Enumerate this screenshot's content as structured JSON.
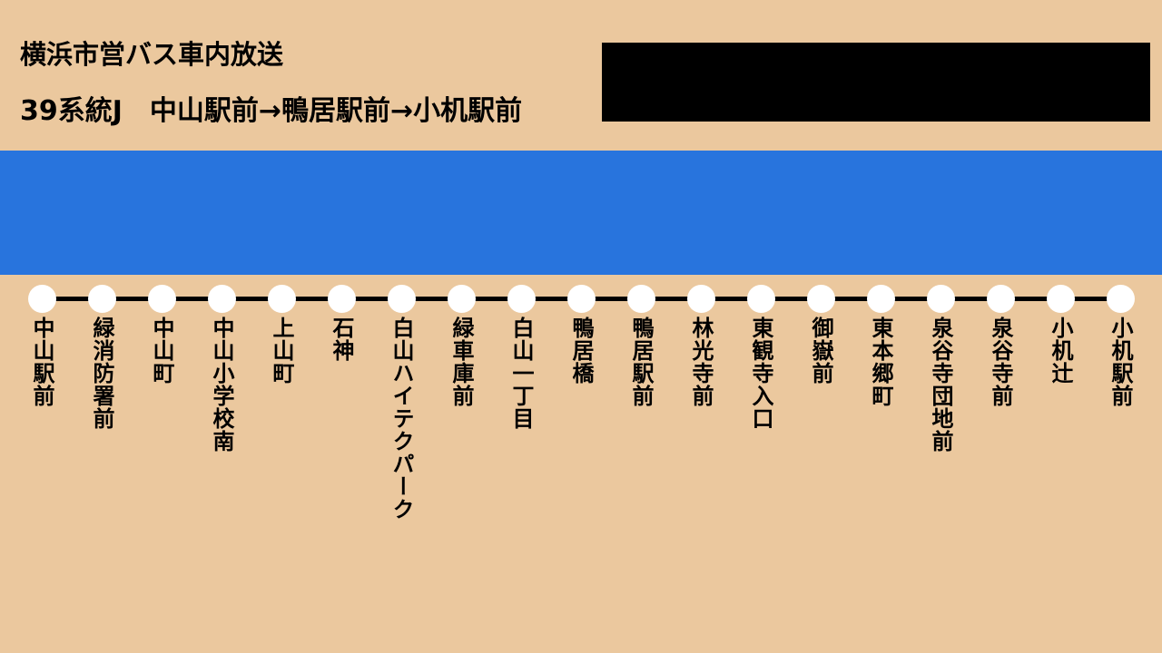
{
  "header": {
    "title": "横浜市営バス車内放送",
    "route": "39系統J　中山駅前→鴨居駅前→小机駅前"
  },
  "colors": {
    "background": "#ebc89e",
    "band": "#2874dd",
    "display": "#000000",
    "stop_dot": "#ffffff"
  },
  "stops": [
    "中山駅前",
    "緑消防署前",
    "中山町",
    "中山小学校南",
    "上山町",
    "石神",
    "白山ハイテクパーク",
    "緑車庫前",
    "白山一丁目",
    "鴨居橋",
    "鴨居駅前",
    "林光寺前",
    "東観寺入口",
    "御嶽前",
    "東本郷町",
    "泉谷寺団地前",
    "泉谷寺前",
    "小机辻",
    "小机駅前"
  ]
}
